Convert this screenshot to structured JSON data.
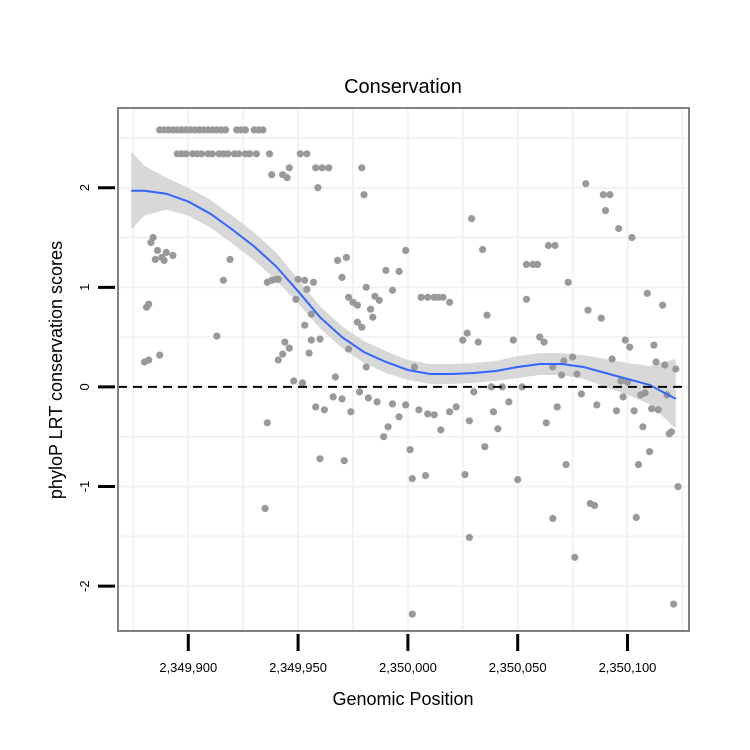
{
  "chart_data": {
    "type": "scatter",
    "title": "Conservation",
    "xlabel": "Genomic Position",
    "ylabel": "phyloP LRT conservation scores",
    "xlim": [
      2349868,
      2350128
    ],
    "ylim": [
      -2.45,
      2.8
    ],
    "x_ticks": [
      2349900,
      2349950,
      2350000,
      2350050,
      2350100
    ],
    "x_tick_labels": [
      "2,349,900",
      "2,349,950",
      "2,350,000",
      "2,350,050",
      "2,350,100"
    ],
    "y_ticks": [
      -2,
      -1,
      0,
      1,
      2
    ],
    "y_tick_labels": [
      "-2",
      "-1",
      "0",
      "1",
      "2"
    ],
    "reference_line": 0,
    "colors": {
      "points": "#999999",
      "smooth_line": "#3366ff",
      "confidence_band": "#d4d4d4",
      "panel_border": "#808080",
      "grid": "#f2f2f2",
      "reference_line": "#000000"
    },
    "points": [
      {
        "x": 2349880,
        "y": 0.25
      },
      {
        "x": 2349881,
        "y": 0.8
      },
      {
        "x": 2349882,
        "y": 0.83
      },
      {
        "x": 2349882,
        "y": 0.27
      },
      {
        "x": 2349883,
        "y": 1.45
      },
      {
        "x": 2349884,
        "y": 1.5
      },
      {
        "x": 2349885,
        "y": 1.28
      },
      {
        "x": 2349886,
        "y": 1.37
      },
      {
        "x": 2349887,
        "y": 0.32
      },
      {
        "x": 2349888,
        "y": 1.3
      },
      {
        "x": 2349889,
        "y": 1.27
      },
      {
        "x": 2349890,
        "y": 1.35
      },
      {
        "x": 2349893,
        "y": 1.32
      },
      {
        "x": 2349887,
        "y": 2.58
      },
      {
        "x": 2349889,
        "y": 2.58
      },
      {
        "x": 2349891,
        "y": 2.58
      },
      {
        "x": 2349893,
        "y": 2.58
      },
      {
        "x": 2349895,
        "y": 2.58
      },
      {
        "x": 2349897,
        "y": 2.58
      },
      {
        "x": 2349899,
        "y": 2.58
      },
      {
        "x": 2349901,
        "y": 2.58
      },
      {
        "x": 2349903,
        "y": 2.58
      },
      {
        "x": 2349905,
        "y": 2.58
      },
      {
        "x": 2349907,
        "y": 2.58
      },
      {
        "x": 2349909,
        "y": 2.58
      },
      {
        "x": 2349911,
        "y": 2.58
      },
      {
        "x": 2349913,
        "y": 2.58
      },
      {
        "x": 2349915,
        "y": 2.58
      },
      {
        "x": 2349917,
        "y": 2.58
      },
      {
        "x": 2349922,
        "y": 2.58
      },
      {
        "x": 2349924,
        "y": 2.58
      },
      {
        "x": 2349926,
        "y": 2.58
      },
      {
        "x": 2349930,
        "y": 2.58
      },
      {
        "x": 2349932,
        "y": 2.58
      },
      {
        "x": 2349934,
        "y": 2.58
      },
      {
        "x": 2349895,
        "y": 2.34
      },
      {
        "x": 2349897,
        "y": 2.34
      },
      {
        "x": 2349899,
        "y": 2.34
      },
      {
        "x": 2349902,
        "y": 2.34
      },
      {
        "x": 2349904,
        "y": 2.34
      },
      {
        "x": 2349906,
        "y": 2.34
      },
      {
        "x": 2349909,
        "y": 2.34
      },
      {
        "x": 2349911,
        "y": 2.34
      },
      {
        "x": 2349914,
        "y": 2.34
      },
      {
        "x": 2349916,
        "y": 2.34
      },
      {
        "x": 2349918,
        "y": 2.34
      },
      {
        "x": 2349921,
        "y": 2.34
      },
      {
        "x": 2349923,
        "y": 2.34
      },
      {
        "x": 2349926,
        "y": 2.34
      },
      {
        "x": 2349928,
        "y": 2.34
      },
      {
        "x": 2349931,
        "y": 2.34
      },
      {
        "x": 2349937,
        "y": 2.34
      },
      {
        "x": 2349951,
        "y": 2.34
      },
      {
        "x": 2349954,
        "y": 2.34
      },
      {
        "x": 2349938,
        "y": 2.13
      },
      {
        "x": 2349943,
        "y": 2.13
      },
      {
        "x": 2349946,
        "y": 2.2
      },
      {
        "x": 2349958,
        "y": 2.2
      },
      {
        "x": 2349961,
        "y": 2.2
      },
      {
        "x": 2349964,
        "y": 2.2
      },
      {
        "x": 2349959,
        "y": 2.0
      },
      {
        "x": 2349945,
        "y": 2.1
      },
      {
        "x": 2349979,
        "y": 2.2
      },
      {
        "x": 2349980,
        "y": 1.93
      },
      {
        "x": 2349916,
        "y": 1.07
      },
      {
        "x": 2349919,
        "y": 1.28
      },
      {
        "x": 2349913,
        "y": 0.51
      },
      {
        "x": 2349936,
        "y": 1.05
      },
      {
        "x": 2349938,
        "y": 1.07
      },
      {
        "x": 2349940,
        "y": 1.08
      },
      {
        "x": 2349941,
        "y": 1.08
      },
      {
        "x": 2349950,
        "y": 1.08
      },
      {
        "x": 2349953,
        "y": 1.07
      },
      {
        "x": 2349957,
        "y": 1.05
      },
      {
        "x": 2349954,
        "y": 0.98
      },
      {
        "x": 2349943,
        "y": 0.33
      },
      {
        "x": 2349944,
        "y": 0.45
      },
      {
        "x": 2349946,
        "y": 0.39
      },
      {
        "x": 2349941,
        "y": 0.27
      },
      {
        "x": 2349949,
        "y": 0.88
      },
      {
        "x": 2349956,
        "y": 0.73
      },
      {
        "x": 2349953,
        "y": 0.62
      },
      {
        "x": 2349956,
        "y": 0.47
      },
      {
        "x": 2349960,
        "y": 0.48
      },
      {
        "x": 2349955,
        "y": 0.34
      },
      {
        "x": 2349948,
        "y": 0.06
      },
      {
        "x": 2349952,
        "y": 0.04
      },
      {
        "x": 2349967,
        "y": 0.1
      },
      {
        "x": 2349936,
        "y": -0.36
      },
      {
        "x": 2349935,
        "y": -1.22
      },
      {
        "x": 2349958,
        "y": -0.2
      },
      {
        "x": 2349962,
        "y": -0.23
      },
      {
        "x": 2349960,
        "y": -0.72
      },
      {
        "x": 2349971,
        "y": -0.74
      },
      {
        "x": 2349968,
        "y": 1.27
      },
      {
        "x": 2349972,
        "y": 1.3
      },
      {
        "x": 2349970,
        "y": 1.1
      },
      {
        "x": 2349973,
        "y": 0.9
      },
      {
        "x": 2349975,
        "y": 0.85
      },
      {
        "x": 2349977,
        "y": 0.82
      },
      {
        "x": 2349979,
        "y": 0.6
      },
      {
        "x": 2349981,
        "y": 1.0
      },
      {
        "x": 2349983,
        "y": 0.78
      },
      {
        "x": 2349985,
        "y": 0.91
      },
      {
        "x": 2349973,
        "y": 0.38
      },
      {
        "x": 2349977,
        "y": 0.65
      },
      {
        "x": 2349981,
        "y": 0.2
      },
      {
        "x": 2349984,
        "y": 0.7
      },
      {
        "x": 2349990,
        "y": 1.17
      },
      {
        "x": 2349993,
        "y": 0.97
      },
      {
        "x": 2349996,
        "y": 1.16
      },
      {
        "x": 2349999,
        "y": 1.37
      },
      {
        "x": 2349987,
        "y": 0.87
      },
      {
        "x": 2349966,
        "y": -0.1
      },
      {
        "x": 2349970,
        "y": -0.12
      },
      {
        "x": 2349974,
        "y": -0.25
      },
      {
        "x": 2349978,
        "y": -0.05
      },
      {
        "x": 2349982,
        "y": -0.11
      },
      {
        "x": 2349986,
        "y": -0.15
      },
      {
        "x": 2349989,
        "y": -0.5
      },
      {
        "x": 2349991,
        "y": -0.4
      },
      {
        "x": 2349993,
        "y": -0.17
      },
      {
        "x": 2349996,
        "y": -0.3
      },
      {
        "x": 2349999,
        "y": -0.18
      },
      {
        "x": 2350001,
        "y": -0.63
      },
      {
        "x": 2350002,
        "y": -0.92
      },
      {
        "x": 2350003,
        "y": 0.2
      },
      {
        "x": 2350005,
        "y": -0.23
      },
      {
        "x": 2350006,
        "y": 0.9
      },
      {
        "x": 2350009,
        "y": 0.9
      },
      {
        "x": 2350012,
        "y": 0.9
      },
      {
        "x": 2350014,
        "y": 0.9
      },
      {
        "x": 2350016,
        "y": 0.9
      },
      {
        "x": 2350019,
        "y": 0.85
      },
      {
        "x": 2350008,
        "y": -0.89
      },
      {
        "x": 2350009,
        "y": -0.27
      },
      {
        "x": 2350012,
        "y": -0.28
      },
      {
        "x": 2350015,
        "y": -0.43
      },
      {
        "x": 2350019,
        "y": -0.25
      },
      {
        "x": 2350022,
        "y": -0.2
      },
      {
        "x": 2350025,
        "y": 0.47
      },
      {
        "x": 2350026,
        "y": -0.88
      },
      {
        "x": 2350027,
        "y": 0.54
      },
      {
        "x": 2350028,
        "y": -0.34
      },
      {
        "x": 2350029,
        "y": 1.69
      },
      {
        "x": 2350030,
        "y": -0.05
      },
      {
        "x": 2350032,
        "y": 0.45
      },
      {
        "x": 2350034,
        "y": 1.38
      },
      {
        "x": 2350035,
        "y": -0.6
      },
      {
        "x": 2350036,
        "y": 0.72
      },
      {
        "x": 2350038,
        "y": 0.0
      },
      {
        "x": 2350039,
        "y": -0.25
      },
      {
        "x": 2350041,
        "y": -0.42
      },
      {
        "x": 2350043,
        "y": 0.0
      },
      {
        "x": 2350046,
        "y": -0.15
      },
      {
        "x": 2350048,
        "y": 0.47
      },
      {
        "x": 2350050,
        "y": -0.93
      },
      {
        "x": 2350052,
        "y": 0.0
      },
      {
        "x": 2350054,
        "y": 0.88
      },
      {
        "x": 2350054,
        "y": 1.23
      },
      {
        "x": 2350057,
        "y": 1.23
      },
      {
        "x": 2350059,
        "y": 1.23
      },
      {
        "x": 2350060,
        "y": 0.5
      },
      {
        "x": 2350062,
        "y": 0.45
      },
      {
        "x": 2350063,
        "y": -0.36
      },
      {
        "x": 2350064,
        "y": 1.42
      },
      {
        "x": 2350067,
        "y": 1.42
      },
      {
        "x": 2350066,
        "y": -1.32
      },
      {
        "x": 2350066,
        "y": 0.2
      },
      {
        "x": 2350068,
        "y": -0.2
      },
      {
        "x": 2350070,
        "y": 0.12
      },
      {
        "x": 2350071,
        "y": 0.26
      },
      {
        "x": 2350072,
        "y": -0.78
      },
      {
        "x": 2350073,
        "y": 1.05
      },
      {
        "x": 2350075,
        "y": 0.3
      },
      {
        "x": 2350076,
        "y": -1.71
      },
      {
        "x": 2350077,
        "y": 0.13
      },
      {
        "x": 2350079,
        "y": -0.07
      },
      {
        "x": 2350081,
        "y": 2.04
      },
      {
        "x": 2350082,
        "y": 0.77
      },
      {
        "x": 2350083,
        "y": -1.17
      },
      {
        "x": 2350085,
        "y": -1.19
      },
      {
        "x": 2350086,
        "y": -0.18
      },
      {
        "x": 2350088,
        "y": 0.69
      },
      {
        "x": 2350089,
        "y": 1.93
      },
      {
        "x": 2350090,
        "y": 1.77
      },
      {
        "x": 2350092,
        "y": 1.93
      },
      {
        "x": 2350093,
        "y": 0.28
      },
      {
        "x": 2350095,
        "y": -0.24
      },
      {
        "x": 2350096,
        "y": 1.59
      },
      {
        "x": 2350097,
        "y": 0.06
      },
      {
        "x": 2350098,
        "y": -0.1
      },
      {
        "x": 2350099,
        "y": 0.47
      },
      {
        "x": 2350100,
        "y": 0.05
      },
      {
        "x": 2350101,
        "y": 0.4
      },
      {
        "x": 2350102,
        "y": 1.5
      },
      {
        "x": 2350103,
        "y": -0.24
      },
      {
        "x": 2350104,
        "y": -1.31
      },
      {
        "x": 2350105,
        "y": -0.78
      },
      {
        "x": 2350106,
        "y": -0.08
      },
      {
        "x": 2350107,
        "y": -0.4
      },
      {
        "x": 2350108,
        "y": -0.06
      },
      {
        "x": 2350109,
        "y": 0.94
      },
      {
        "x": 2350110,
        "y": -0.65
      },
      {
        "x": 2350111,
        "y": -0.22
      },
      {
        "x": 2350112,
        "y": 0.42
      },
      {
        "x": 2350113,
        "y": 0.25
      },
      {
        "x": 2350114,
        "y": -0.23
      },
      {
        "x": 2350116,
        "y": 0.82
      },
      {
        "x": 2350117,
        "y": 0.22
      },
      {
        "x": 2350118,
        "y": -0.08
      },
      {
        "x": 2350119,
        "y": -0.47
      },
      {
        "x": 2350120,
        "y": -0.45
      },
      {
        "x": 2350121,
        "y": -2.18
      },
      {
        "x": 2350122,
        "y": 0.18
      },
      {
        "x": 2350123,
        "y": -1.0
      },
      {
        "x": 2350002,
        "y": -2.28
      },
      {
        "x": 2350028,
        "y": -1.51
      }
    ],
    "smooth": {
      "x": [
        2349874,
        2349880,
        2349890,
        2349900,
        2349910,
        2349920,
        2349930,
        2349940,
        2349950,
        2349960,
        2349970,
        2349980,
        2349990,
        2350000,
        2350010,
        2350020,
        2350030,
        2350040,
        2350050,
        2350060,
        2350070,
        2350080,
        2350090,
        2350100,
        2350110,
        2350122
      ],
      "y": [
        1.97,
        1.97,
        1.94,
        1.86,
        1.74,
        1.58,
        1.41,
        1.21,
        0.96,
        0.7,
        0.5,
        0.35,
        0.25,
        0.17,
        0.13,
        0.13,
        0.14,
        0.16,
        0.2,
        0.23,
        0.23,
        0.2,
        0.14,
        0.08,
        0.02,
        -0.12
      ],
      "lower": [
        1.58,
        1.72,
        1.78,
        1.72,
        1.6,
        1.44,
        1.27,
        1.07,
        0.84,
        0.59,
        0.39,
        0.24,
        0.14,
        0.07,
        0.03,
        0.03,
        0.04,
        0.06,
        0.09,
        0.12,
        0.12,
        0.08,
        0.0,
        -0.08,
        -0.17,
        -0.42
      ],
      "upper": [
        2.36,
        2.22,
        2.1,
        2.0,
        1.88,
        1.72,
        1.55,
        1.35,
        1.08,
        0.81,
        0.61,
        0.46,
        0.36,
        0.27,
        0.23,
        0.23,
        0.24,
        0.26,
        0.31,
        0.34,
        0.34,
        0.32,
        0.28,
        0.24,
        0.21,
        0.28
      ]
    }
  }
}
